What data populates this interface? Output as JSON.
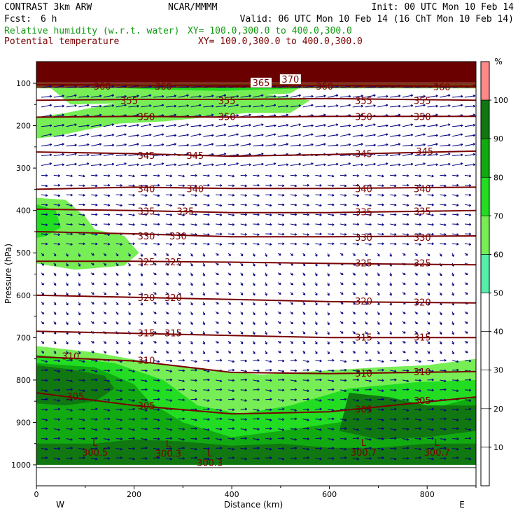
{
  "header": {
    "model": "CONTRAST  3km ARW",
    "center": "NCAR/MMMM",
    "init": "Init: 00 UTC Mon 10 Feb 14",
    "fcst_label": "Fcst:",
    "fcst_value": "6 h",
    "valid": "Valid: 06 UTC Mon 10 Feb 14 (16 ChT Mon 10 Feb 14)",
    "field1": "Relative humidity (w.r.t. water)",
    "field1_xy": "XY= 100.0,300.0 to 400.0,300.0",
    "field2": "Potential temperature",
    "field2_xy": "XY= 100.0,300.0 to 400.0,300.0"
  },
  "colors": {
    "field1_text": "#129a12",
    "field2_text": "#7a0000",
    "theta_line": "#7a0000",
    "wind_arrow": "#000080",
    "strat_band": "#6b0000"
  },
  "chart_data": {
    "type": "heatmap",
    "xlabel": "Distance (km)",
    "ylabel": "Pressure (hPa)",
    "xlim": [
      0,
      900
    ],
    "ylim": [
      1000,
      50
    ],
    "x_ticks": [
      0,
      200,
      400,
      600,
      800
    ],
    "y_ticks": [
      100,
      200,
      300,
      400,
      500,
      600,
      700,
      800,
      900,
      1000
    ],
    "x_end_labels": [
      "W",
      "E"
    ],
    "colorbar": {
      "unit": "%",
      "levels": [
        10,
        20,
        30,
        40,
        50,
        60,
        70,
        80,
        90,
        100
      ],
      "colors": [
        "#ffffff",
        "#ffffff",
        "#ffffff",
        "#ffffff",
        "#ffffff",
        "#55eeaa",
        "#77ee55",
        "#22dd22",
        "#11aa11",
        "#117711",
        "#ff8888"
      ]
    },
    "rh_regions": [
      {
        "level": 60,
        "points": [
          [
            0,
            1000
          ],
          [
            900,
            1000
          ],
          [
            900,
            750
          ],
          [
            800,
            765
          ],
          [
            700,
            770
          ],
          [
            560,
            780
          ],
          [
            460,
            787
          ],
          [
            340,
            775
          ],
          [
            240,
            760
          ],
          [
            120,
            735
          ],
          [
            0,
            720
          ]
        ]
      },
      {
        "level": 60,
        "points": [
          [
            30,
            112
          ],
          [
            70,
            150
          ],
          [
            140,
            148
          ],
          [
            220,
            145
          ],
          [
            380,
            132
          ],
          [
            520,
            124
          ],
          [
            540,
            110
          ],
          [
            480,
            100
          ],
          [
            300,
            102
          ],
          [
            120,
            106
          ]
        ]
      },
      {
        "level": 60,
        "points": [
          [
            0,
            230
          ],
          [
            40,
            225
          ],
          [
            100,
            210
          ],
          [
            170,
            195
          ],
          [
            260,
            190
          ],
          [
            350,
            180
          ],
          [
            430,
            170
          ],
          [
            520,
            170
          ],
          [
            560,
            140
          ],
          [
            460,
            125
          ],
          [
            300,
            135
          ],
          [
            170,
            145
          ],
          [
            60,
            170
          ],
          [
            0,
            180
          ]
        ]
      },
      {
        "level": 60,
        "points": [
          [
            0,
            370
          ],
          [
            60,
            375
          ],
          [
            100,
            415
          ],
          [
            120,
            445
          ],
          [
            180,
            460
          ],
          [
            210,
            500
          ],
          [
            180,
            530
          ],
          [
            80,
            540
          ],
          [
            0,
            525
          ]
        ]
      },
      {
        "level": 60,
        "points": [
          [
            0,
            100
          ],
          [
            900,
            100
          ],
          [
            900,
            112
          ],
          [
            0,
            112
          ]
        ]
      },
      {
        "level": 70,
        "points": [
          [
            0,
            1000
          ],
          [
            900,
            1000
          ],
          [
            900,
            800
          ],
          [
            780,
            805
          ],
          [
            640,
            820
          ],
          [
            520,
            860
          ],
          [
            420,
            880
          ],
          [
            330,
            860
          ],
          [
            260,
            800
          ],
          [
            160,
            760
          ],
          [
            0,
            740
          ]
        ]
      },
      {
        "level": 70,
        "points": [
          [
            150,
            110
          ],
          [
            250,
            115
          ],
          [
            380,
            118
          ],
          [
            540,
            112
          ],
          [
            520,
            100
          ],
          [
            250,
            102
          ]
        ]
      },
      {
        "level": 70,
        "points": [
          [
            0,
            385
          ],
          [
            40,
            400
          ],
          [
            50,
            440
          ],
          [
            20,
            460
          ],
          [
            0,
            465
          ]
        ]
      },
      {
        "level": 80,
        "points": [
          [
            0,
            1000
          ],
          [
            900,
            1000
          ],
          [
            900,
            840
          ],
          [
            800,
            870
          ],
          [
            700,
            880
          ],
          [
            620,
            900
          ],
          [
            500,
            920
          ],
          [
            400,
            935
          ],
          [
            300,
            900
          ],
          [
            230,
            850
          ],
          [
            200,
            810
          ],
          [
            120,
            770
          ],
          [
            0,
            760
          ]
        ]
      },
      {
        "level": 90,
        "points": [
          [
            0,
            1000
          ],
          [
            900,
            1000
          ],
          [
            900,
            950
          ],
          [
            800,
            950
          ],
          [
            700,
            960
          ],
          [
            600,
            960
          ],
          [
            500,
            950
          ],
          [
            400,
            955
          ],
          [
            300,
            945
          ],
          [
            200,
            940
          ],
          [
            120,
            950
          ],
          [
            0,
            950
          ]
        ]
      },
      {
        "level": 90,
        "points": [
          [
            0,
            765
          ],
          [
            70,
            775
          ],
          [
            140,
            790
          ],
          [
            160,
            820
          ],
          [
            120,
            850
          ],
          [
            60,
            860
          ],
          [
            0,
            855
          ]
        ]
      },
      {
        "level": 90,
        "points": [
          [
            640,
            830
          ],
          [
            720,
            840
          ],
          [
            800,
            860
          ],
          [
            900,
            860
          ],
          [
            900,
            920
          ],
          [
            800,
            935
          ],
          [
            700,
            940
          ],
          [
            620,
            920
          ]
        ]
      }
    ],
    "theta_contours": [
      {
        "value": "360",
        "points": [
          [
            0,
            103
          ],
          [
            200,
            104
          ],
          [
            400,
            106
          ],
          [
            600,
            105
          ],
          [
            900,
            107
          ]
        ],
        "labels": [
          [
            135,
            108
          ],
          [
            260,
            108
          ],
          [
            590,
            108
          ],
          [
            830,
            110
          ]
        ]
      },
      {
        "value": "355",
        "points": [
          [
            0,
            140
          ],
          [
            200,
            138
          ],
          [
            400,
            138
          ],
          [
            600,
            136
          ],
          [
            900,
            140
          ]
        ],
        "labels": [
          [
            190,
            142
          ],
          [
            390,
            142
          ],
          [
            670,
            142
          ],
          [
            790,
            142
          ]
        ]
      },
      {
        "value": "350",
        "points": [
          [
            0,
            180
          ],
          [
            200,
            178
          ],
          [
            400,
            180
          ],
          [
            600,
            178
          ],
          [
            900,
            178
          ]
        ],
        "labels": [
          [
            225,
            180
          ],
          [
            390,
            180
          ],
          [
            670,
            180
          ],
          [
            790,
            180
          ]
        ]
      },
      {
        "value": "345",
        "points": [
          [
            0,
            262
          ],
          [
            200,
            266
          ],
          [
            400,
            272
          ],
          [
            600,
            268
          ],
          [
            900,
            260
          ]
        ],
        "labels": [
          [
            225,
            272
          ],
          [
            325,
            272
          ],
          [
            670,
            268
          ],
          [
            795,
            262
          ]
        ]
      },
      {
        "value": "340",
        "points": [
          [
            0,
            350
          ],
          [
            200,
            345
          ],
          [
            400,
            348
          ],
          [
            600,
            348
          ],
          [
            900,
            345
          ]
        ],
        "labels": [
          [
            225,
            350
          ],
          [
            325,
            350
          ],
          [
            670,
            350
          ],
          [
            790,
            350
          ]
        ]
      },
      {
        "value": "335",
        "points": [
          [
            0,
            397
          ],
          [
            200,
            400
          ],
          [
            400,
            405
          ],
          [
            600,
            405
          ],
          [
            900,
            400
          ]
        ],
        "labels": [
          [
            225,
            403
          ],
          [
            305,
            403
          ],
          [
            670,
            405
          ],
          [
            790,
            403
          ]
        ]
      },
      {
        "value": "330",
        "points": [
          [
            0,
            450
          ],
          [
            200,
            455
          ],
          [
            400,
            462
          ],
          [
            600,
            462
          ],
          [
            900,
            460
          ]
        ],
        "labels": [
          [
            225,
            462
          ],
          [
            290,
            462
          ],
          [
            670,
            465
          ],
          [
            790,
            465
          ]
        ]
      },
      {
        "value": "325",
        "points": [
          [
            0,
            520
          ],
          [
            200,
            520
          ],
          [
            400,
            522
          ],
          [
            600,
            525
          ],
          [
            900,
            528
          ]
        ],
        "labels": [
          [
            225,
            523
          ],
          [
            280,
            523
          ],
          [
            670,
            525
          ],
          [
            790,
            525
          ]
        ]
      },
      {
        "value": "320",
        "points": [
          [
            0,
            600
          ],
          [
            200,
            605
          ],
          [
            400,
            610
          ],
          [
            600,
            615
          ],
          [
            900,
            618
          ]
        ],
        "labels": [
          [
            225,
            607
          ],
          [
            280,
            607
          ],
          [
            670,
            615
          ],
          [
            790,
            618
          ]
        ]
      },
      {
        "value": "315",
        "points": [
          [
            0,
            685
          ],
          [
            200,
            690
          ],
          [
            400,
            695
          ],
          [
            600,
            700
          ],
          [
            900,
            700
          ]
        ],
        "labels": [
          [
            225,
            690
          ],
          [
            280,
            690
          ],
          [
            670,
            700
          ],
          [
            790,
            700
          ]
        ]
      },
      {
        "value": "310",
        "points": [
          [
            0,
            745
          ],
          [
            200,
            755
          ],
          [
            400,
            782
          ],
          [
            600,
            785
          ],
          [
            900,
            780
          ]
        ],
        "labels": [
          [
            70,
            745
          ],
          [
            225,
            755
          ],
          [
            670,
            785
          ],
          [
            790,
            782
          ]
        ]
      },
      {
        "value": "305",
        "points": [
          [
            0,
            830
          ],
          [
            200,
            860
          ],
          [
            400,
            880
          ],
          [
            600,
            875
          ],
          [
            900,
            840
          ]
        ],
        "labels": [
          [
            80,
            840
          ],
          [
            225,
            862
          ],
          [
            670,
            870
          ],
          [
            790,
            850
          ]
        ]
      }
    ],
    "theta_labels_extra": [
      {
        "value": "365",
        "x": 460,
        "y": 100
      },
      {
        "value": "370",
        "x": 520,
        "y": 92
      }
    ],
    "lows": [
      {
        "value": "300.5",
        "x": 120,
        "y": 965
      },
      {
        "value": "300.3",
        "x": 270,
        "y": 968
      },
      {
        "value": "300.3",
        "x": 355,
        "y": 990
      },
      {
        "value": "300.7",
        "x": 670,
        "y": 965
      },
      {
        "value": "300.7",
        "x": 820,
        "y": 965
      }
    ]
  }
}
